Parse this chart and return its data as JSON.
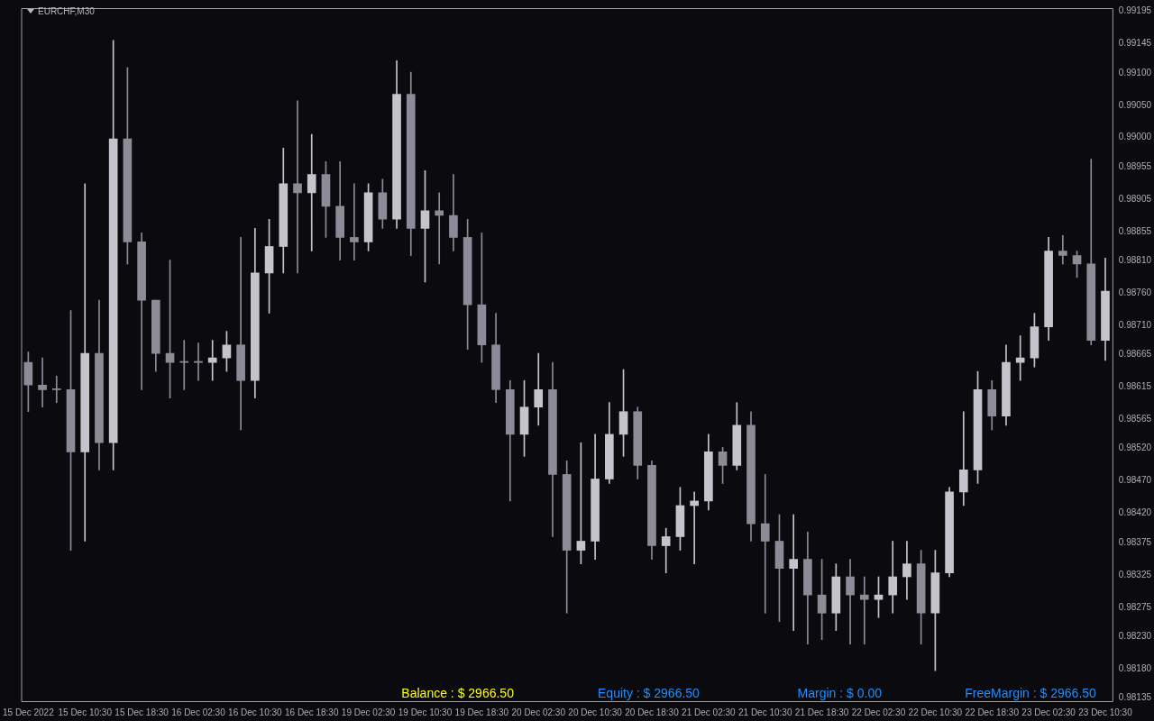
{
  "chart_data": {
    "type": "candlestick",
    "title": "EURCHF,M30",
    "colors": [
      "#8c8c98",
      "#8c8c98",
      "#8c8c98",
      "#8c8c98",
      "#c4c4cc",
      "#8c8c98",
      "#c4c4cc",
      "#8c8c98",
      "#8c8c98",
      "#8c8c98",
      "#8c8c98",
      "#8c8c98",
      "#8c8c98",
      "#c4c4cc",
      "#c4c4cc",
      "#8c8c98",
      "#c4c4cc",
      "#c4c4cc",
      "#c4c4cc",
      "#8c8c98",
      "#c4c4cc",
      "#8c8c98",
      "#8c8c98",
      "#8c8c98",
      "#c4c4cc",
      "#8c8c98",
      "#c4c4cc",
      "#8c8c98",
      "#c4c4cc",
      "#8c8c98",
      "#8c8c98",
      "#8c8c98",
      "#8c8c98",
      "#8c8c98",
      "#8c8c98",
      "#c4c4cc",
      "#c4c4cc",
      "#8c8c98",
      "#8c8c98",
      "#c4c4cc",
      "#c4c4cc",
      "#c4c4cc",
      "#c4c4cc",
      "#8c8c98",
      "#8c8c98",
      "#c4c4cc",
      "#c4c4cc",
      "#c4c4cc",
      "#c4c4cc",
      "#8c8c98",
      "#c4c4cc",
      "#8c8c98",
      "#8c8c98",
      "#8c8c98",
      "#c4c4cc",
      "#8c8c98",
      "#8c8c98",
      "#c4c4cc",
      "#8c8c98",
      "#8c8c98",
      "#c4c4cc",
      "#c4c4cc",
      "#c4c4cc",
      "#8c8c98",
      "#c4c4cc",
      "#c4c4cc",
      "#c4c4cc",
      "#c4c4cc",
      "#8c8c98",
      "#c4c4cc",
      "#c4c4cc",
      "#c4c4cc",
      "#c4c4cc",
      "#8c8c98",
      "#8c8c98",
      "#8c8c98",
      "#c4c4cc"
    ],
    "categories": [
      "15 Dec 2022",
      null,
      null,
      null,
      "15 Dec 10:30",
      null,
      null,
      null,
      "15 Dec 18:30",
      null,
      null,
      null,
      "16 Dec 02:30",
      null,
      null,
      null,
      "16 Dec 10:30",
      null,
      null,
      null,
      "16 Dec 18:30",
      null,
      null,
      null,
      "19 Dec 02:30",
      null,
      null,
      null,
      "19 Dec 10:30",
      null,
      null,
      null,
      "19 Dec 18:30",
      null,
      null,
      null,
      "20 Dec 02:30",
      null,
      null,
      null,
      "20 Dec 10:30",
      null,
      null,
      null,
      "20 Dec 18:30",
      null,
      null,
      null,
      "21 Dec 02:30",
      null,
      null,
      null,
      "21 Dec 10:30",
      null,
      null,
      null,
      "21 Dec 18:30",
      null,
      null,
      null,
      "22 Dec 02:30",
      null,
      null,
      null,
      "22 Dec 10:30",
      null,
      null,
      null,
      "22 Dec 18:30",
      null,
      null,
      null,
      "23 Dec 02:30",
      null,
      null,
      null,
      "23 Dec 10:30"
    ],
    "ohlc": [
      [
        0.98653,
        0.98669,
        0.98577,
        0.98618
      ],
      [
        0.98618,
        0.9866,
        0.98584,
        0.98611
      ],
      [
        0.98611,
        0.98632,
        0.98591,
        0.98611
      ],
      [
        0.98611,
        0.98733,
        0.98363,
        0.98515
      ],
      [
        0.98515,
        0.98929,
        0.98377,
        0.98667
      ],
      [
        0.98667,
        0.98749,
        0.98487,
        0.98529
      ],
      [
        0.98529,
        0.9915,
        0.98487,
        0.98998
      ],
      [
        0.98998,
        0.99108,
        0.98805,
        0.98839
      ],
      [
        0.98839,
        0.98853,
        0.98611,
        0.98749
      ],
      [
        0.98749,
        0.98749,
        0.98639,
        0.98667
      ],
      [
        0.98667,
        0.98811,
        0.98598,
        0.98653
      ],
      [
        0.98653,
        0.98687,
        0.98611,
        0.98653
      ],
      [
        0.98653,
        0.98683,
        0.98625,
        0.98653
      ],
      [
        0.98653,
        0.98687,
        0.98625,
        0.9866
      ],
      [
        0.9866,
        0.98701,
        0.98639,
        0.9868
      ],
      [
        0.9868,
        0.98846,
        0.98549,
        0.98625
      ],
      [
        0.98625,
        0.9886,
        0.98598,
        0.98791
      ],
      [
        0.98791,
        0.98874,
        0.98729,
        0.98832
      ],
      [
        0.98832,
        0.98984,
        0.98791,
        0.98929
      ],
      [
        0.98929,
        0.99057,
        0.98791,
        0.98915
      ],
      [
        0.98915,
        0.99005,
        0.98825,
        0.98943
      ],
      [
        0.98943,
        0.98963,
        0.98846,
        0.98894
      ],
      [
        0.98894,
        0.98963,
        0.98811,
        0.98846
      ],
      [
        0.98846,
        0.98929,
        0.98811,
        0.98839
      ],
      [
        0.98839,
        0.98929,
        0.98825,
        0.98915
      ],
      [
        0.98915,
        0.98936,
        0.9886,
        0.98874
      ],
      [
        0.98874,
        0.99119,
        0.9886,
        0.99067
      ],
      [
        0.99067,
        0.99101,
        0.98818,
        0.9886
      ],
      [
        0.9886,
        0.98949,
        0.98777,
        0.98887
      ],
      [
        0.98887,
        0.98915,
        0.98805,
        0.9888
      ],
      [
        0.9888,
        0.98943,
        0.98825,
        0.98846
      ],
      [
        0.98846,
        0.98874,
        0.98673,
        0.98742
      ],
      [
        0.98742,
        0.98853,
        0.98653,
        0.9868
      ],
      [
        0.9868,
        0.98729,
        0.98591,
        0.98611
      ],
      [
        0.98611,
        0.98625,
        0.98439,
        0.98542
      ],
      [
        0.98542,
        0.98625,
        0.98508,
        0.98584
      ],
      [
        0.98584,
        0.98667,
        0.98556,
        0.98611
      ],
      [
        0.98611,
        0.98653,
        0.98384,
        0.9848
      ],
      [
        0.9848,
        0.98501,
        0.98266,
        0.98363
      ],
      [
        0.98363,
        0.98529,
        0.98342,
        0.98377
      ],
      [
        0.98377,
        0.98542,
        0.98349,
        0.98473
      ],
      [
        0.98473,
        0.98591,
        0.98466,
        0.98542
      ],
      [
        0.98542,
        0.98642,
        0.98508,
        0.98577
      ],
      [
        0.98577,
        0.98584,
        0.98473,
        0.98494
      ],
      [
        0.98494,
        0.98501,
        0.98349,
        0.9837
      ],
      [
        0.9837,
        0.98397,
        0.98328,
        0.98384
      ],
      [
        0.98384,
        0.9846,
        0.98363,
        0.98432
      ],
      [
        0.98432,
        0.98453,
        0.98342,
        0.98439
      ],
      [
        0.98439,
        0.98542,
        0.98425,
        0.98515
      ],
      [
        0.98515,
        0.98522,
        0.98466,
        0.98494
      ],
      [
        0.98494,
        0.98591,
        0.98487,
        0.98556
      ],
      [
        0.98556,
        0.98577,
        0.98377,
        0.98404
      ],
      [
        0.98404,
        0.9848,
        0.98266,
        0.98377
      ],
      [
        0.98377,
        0.98418,
        0.98253,
        0.98335
      ],
      [
        0.98335,
        0.98418,
        0.98239,
        0.98349
      ],
      [
        0.98349,
        0.98391,
        0.98218,
        0.98294
      ],
      [
        0.98294,
        0.98349,
        0.98225,
        0.98266
      ],
      [
        0.98266,
        0.98342,
        0.98239,
        0.98322
      ],
      [
        0.98322,
        0.98349,
        0.98218,
        0.98294
      ],
      [
        0.98294,
        0.98322,
        0.98218,
        0.98287
      ],
      [
        0.98287,
        0.98322,
        0.98259,
        0.98294
      ],
      [
        0.98294,
        0.98377,
        0.98266,
        0.98322
      ],
      [
        0.98322,
        0.98377,
        0.98287,
        0.98342
      ],
      [
        0.98342,
        0.98363,
        0.98218,
        0.98266
      ],
      [
        0.98266,
        0.98363,
        0.98177,
        0.98328
      ],
      [
        0.98328,
        0.9846,
        0.98322,
        0.98453
      ],
      [
        0.98453,
        0.98577,
        0.98432,
        0.98487
      ],
      [
        0.98487,
        0.98639,
        0.98466,
        0.98611
      ],
      [
        0.98611,
        0.98625,
        0.98549,
        0.9857
      ],
      [
        0.9857,
        0.9868,
        0.98556,
        0.98653
      ],
      [
        0.98653,
        0.98694,
        0.98625,
        0.9866
      ],
      [
        0.9866,
        0.98729,
        0.98646,
        0.98708
      ],
      [
        0.98708,
        0.98846,
        0.98687,
        0.98825
      ],
      [
        0.98825,
        0.98849,
        0.98805,
        0.98818
      ],
      [
        0.98818,
        0.98825,
        0.98784,
        0.98805
      ],
      [
        0.98805,
        0.98967,
        0.9868,
        0.98687
      ],
      [
        0.98687,
        0.98814,
        0.98656,
        0.98763
      ]
    ],
    "ylim": [
      0.9813,
      0.992
    ],
    "yticks": [
      {
        "value": 0.99195,
        "label": "0.99195"
      },
      {
        "value": 0.99145,
        "label": "0.99145"
      },
      {
        "value": 0.991,
        "label": "0.99100"
      },
      {
        "value": 0.9905,
        "label": "0.99050"
      },
      {
        "value": 0.99,
        "label": "0.99000"
      },
      {
        "value": 0.98955,
        "label": "0.98955"
      },
      {
        "value": 0.98905,
        "label": "0.98905"
      },
      {
        "value": 0.98855,
        "label": "0.98855"
      },
      {
        "value": 0.9881,
        "label": "0.98810"
      },
      {
        "value": 0.9876,
        "label": "0.98760"
      },
      {
        "value": 0.9871,
        "label": "0.98710"
      },
      {
        "value": 0.98665,
        "label": "0.98665"
      },
      {
        "value": 0.98615,
        "label": "0.98615"
      },
      {
        "value": 0.98565,
        "label": "0.98565"
      },
      {
        "value": 0.9852,
        "label": "0.98520"
      },
      {
        "value": 0.9847,
        "label": "0.98470"
      },
      {
        "value": 0.9842,
        "label": "0.98420"
      },
      {
        "value": 0.98375,
        "label": "0.98375"
      },
      {
        "value": 0.98325,
        "label": "0.98325"
      },
      {
        "value": 0.98275,
        "label": "0.98275"
      },
      {
        "value": 0.9823,
        "label": "0.98230"
      },
      {
        "value": 0.9818,
        "label": "0.98180"
      },
      {
        "value": 0.98135,
        "label": "0.98135"
      }
    ],
    "annotations": [
      "Balance : $ 2966.50",
      "Equity : $ 2966.50",
      "Margin : $ 0.00",
      "FreeMargin : $ 2966.50"
    ]
  }
}
